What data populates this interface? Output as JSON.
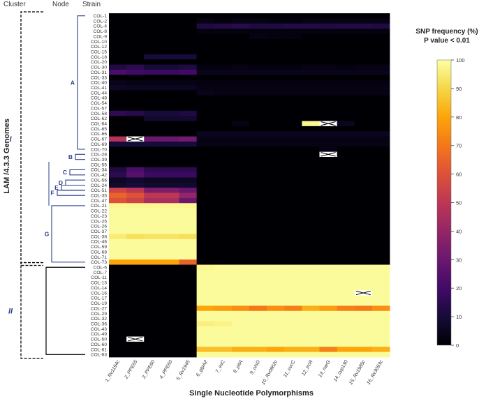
{
  "headers": {
    "cluster": "Cluster",
    "node": "Node",
    "strain": "Strain"
  },
  "legend": {
    "title_line1": "SNP frequency (%)",
    "title_line2": "P value < 0.01",
    "ticks": [
      0,
      10,
      20,
      30,
      40,
      50,
      60,
      70,
      80,
      90,
      100
    ]
  },
  "xlabel": "Single Nucleotide Polymorphisms",
  "ylabel": "LAM /4.3.3 Genomes",
  "clusters": [
    {
      "name": "I",
      "first": "COL-1",
      "last": "COL-73"
    },
    {
      "name": "II",
      "first": "COL-6",
      "last": "COL-63"
    }
  ],
  "nodes": [
    {
      "name": "A",
      "first": "COL-1",
      "last": "COL-70"
    },
    {
      "name": "B",
      "first": "COL-28",
      "last": "COL-39"
    },
    {
      "name": "C",
      "first": "COL-34",
      "last": "COL-42"
    },
    {
      "name": "D",
      "first": "COL-56",
      "last": "COL-24"
    },
    {
      "name": "E",
      "first": "COL-24",
      "last": "COL-51"
    },
    {
      "name": "F",
      "first": "COL-51",
      "last": "COL-35"
    },
    {
      "name": "G",
      "first": "COL-21",
      "last": "COL-73"
    }
  ],
  "chart_data": {
    "type": "heatmap",
    "xlabel": "Single Nucleotide Polymorphisms",
    "ylabel": "LAM /4.3.3 Genomes",
    "colorbar_label": "SNP frequency (%) P value < 0.01",
    "zlim": [
      0,
      100
    ],
    "columns": [
      "1_Rv1194c",
      "2_PPE65",
      "3_PPE60",
      "4_PPE60",
      "5_Rv1945",
      "6_glpA2",
      "7_iniC",
      "8_pitA",
      "9_otsD",
      "10_Rv0862c",
      "11_sucC",
      "12_trcR",
      "13_narG",
      "14_cyp130",
      "15_Rv1985c",
      "16_Rv3093c"
    ],
    "rows": [
      "COL-1",
      "COL-2",
      "COL-4",
      "COL-8",
      "COL-9",
      "COL-10",
      "COL-12",
      "COL-15",
      "COL-18",
      "COL-20",
      "COL-30",
      "COL-31",
      "COL-33",
      "COL-40",
      "COL-41",
      "COL-44",
      "COL-48",
      "COL-54",
      "COL-57",
      "COL-58",
      "COL-62",
      "COL-64",
      "COL-65",
      "COL-66",
      "COL-67",
      "COL-69",
      "COL-70",
      "COL-28",
      "COL-39",
      "COL-55",
      "COL-34",
      "COL-42",
      "COL-56",
      "COL-24",
      "COL-51",
      "COL-35",
      "COL-47",
      "COL-21",
      "COL-22",
      "COL-23",
      "COL-25",
      "COL-26",
      "COL-37",
      "COL-38",
      "COL-46",
      "COL-59",
      "COL-68",
      "COL-71",
      "COL-73",
      "COL-6",
      "COL-7",
      "COL-11",
      "COL-13",
      "COL-14",
      "COL-16",
      "COL-17",
      "COL-19",
      "COL-27",
      "COL-29",
      "COL-32",
      "COL-36",
      "COL-43",
      "COL-49",
      "COL-50",
      "COL-60",
      "COL-61",
      "COL-63"
    ],
    "values": [
      [
        0,
        0,
        0,
        0,
        0,
        0,
        0,
        0,
        0,
        0,
        0,
        0,
        0,
        0,
        0,
        0
      ],
      [
        0,
        0,
        0,
        0,
        0,
        3,
        2,
        3,
        3,
        2,
        2,
        3,
        3,
        3,
        3,
        3
      ],
      [
        0,
        0,
        0,
        0,
        0,
        12,
        13,
        14,
        12,
        12,
        13,
        13,
        12,
        13,
        13,
        12
      ],
      [
        0,
        0,
        0,
        0,
        0,
        2,
        2,
        2,
        2,
        2,
        2,
        2,
        2,
        2,
        2,
        2
      ],
      [
        0,
        0,
        0,
        0,
        0,
        0,
        0,
        0,
        3,
        2,
        2,
        0,
        0,
        0,
        0,
        0
      ],
      [
        0,
        0,
        0,
        0,
        0,
        0,
        0,
        0,
        0,
        0,
        0,
        0,
        0,
        0,
        0,
        0
      ],
      [
        0,
        0,
        0,
        0,
        0,
        0,
        0,
        0,
        0,
        0,
        0,
        0,
        0,
        0,
        0,
        0
      ],
      [
        0,
        0,
        0,
        0,
        0,
        0,
        0,
        0,
        0,
        0,
        0,
        0,
        0,
        0,
        0,
        0
      ],
      [
        0,
        0,
        10,
        10,
        10,
        0,
        0,
        0,
        0,
        0,
        0,
        0,
        0,
        0,
        0,
        0
      ],
      [
        0,
        0,
        0,
        0,
        0,
        0,
        0,
        0,
        0,
        0,
        0,
        0,
        0,
        0,
        0,
        0
      ],
      [
        12,
        15,
        10,
        10,
        12,
        2,
        2,
        3,
        2,
        2,
        2,
        3,
        3,
        2,
        3,
        3
      ],
      [
        22,
        20,
        18,
        18,
        20,
        4,
        4,
        4,
        4,
        4,
        4,
        4,
        4,
        4,
        4,
        4
      ],
      [
        0,
        0,
        0,
        0,
        0,
        0,
        0,
        0,
        0,
        0,
        0,
        0,
        0,
        0,
        0,
        0
      ],
      [
        4,
        3,
        3,
        3,
        3,
        2,
        2,
        2,
        2,
        2,
        2,
        2,
        2,
        2,
        2,
        2
      ],
      [
        6,
        5,
        5,
        5,
        5,
        3,
        3,
        3,
        3,
        3,
        3,
        3,
        3,
        3,
        3,
        3
      ],
      [
        0,
        0,
        0,
        0,
        0,
        4,
        3,
        3,
        3,
        3,
        3,
        3,
        3,
        3,
        3,
        3
      ],
      [
        0,
        0,
        0,
        0,
        0,
        0,
        0,
        0,
        0,
        0,
        0,
        0,
        0,
        0,
        0,
        0
      ],
      [
        0,
        0,
        0,
        0,
        0,
        0,
        0,
        0,
        0,
        0,
        0,
        0,
        0,
        0,
        0,
        0
      ],
      [
        0,
        0,
        0,
        0,
        0,
        0,
        0,
        0,
        0,
        0,
        0,
        0,
        0,
        0,
        0,
        0
      ],
      [
        16,
        14,
        10,
        10,
        12,
        0,
        0,
        0,
        0,
        0,
        0,
        0,
        0,
        0,
        0,
        0
      ],
      [
        0,
        0,
        8,
        8,
        8,
        0,
        0,
        0,
        0,
        0,
        0,
        0,
        0,
        0,
        0,
        0
      ],
      [
        0,
        0,
        0,
        0,
        0,
        0,
        0,
        3,
        0,
        0,
        0,
        98,
        null,
        5,
        0,
        0
      ],
      [
        0,
        0,
        0,
        0,
        0,
        0,
        0,
        0,
        0,
        0,
        0,
        0,
        0,
        0,
        0,
        0
      ],
      [
        0,
        0,
        0,
        0,
        0,
        5,
        5,
        5,
        5,
        5,
        5,
        5,
        5,
        5,
        5,
        5
      ],
      [
        48,
        null,
        30,
        30,
        32,
        3,
        3,
        3,
        3,
        3,
        3,
        3,
        3,
        3,
        3,
        3
      ],
      [
        10,
        10,
        10,
        10,
        10,
        3,
        3,
        3,
        3,
        3,
        3,
        3,
        3,
        3,
        3,
        3
      ],
      [
        0,
        0,
        0,
        0,
        0,
        0,
        0,
        0,
        0,
        0,
        0,
        0,
        3,
        0,
        0,
        0
      ],
      [
        0,
        0,
        0,
        0,
        0,
        0,
        0,
        0,
        0,
        0,
        0,
        0,
        null,
        0,
        0,
        0
      ],
      [
        0,
        0,
        0,
        0,
        0,
        0,
        0,
        0,
        0,
        0,
        0,
        0,
        0,
        0,
        0,
        0
      ],
      [
        0,
        0,
        0,
        0,
        0,
        0,
        0,
        0,
        0,
        0,
        0,
        0,
        0,
        0,
        0,
        0
      ],
      [
        12,
        22,
        15,
        15,
        15,
        0,
        0,
        0,
        0,
        0,
        0,
        0,
        0,
        0,
        0,
        0
      ],
      [
        15,
        25,
        18,
        18,
        18,
        0,
        0,
        0,
        0,
        0,
        0,
        0,
        0,
        0,
        0,
        0
      ],
      [
        6,
        8,
        6,
        6,
        6,
        0,
        0,
        0,
        0,
        0,
        0,
        0,
        0,
        0,
        0,
        0
      ],
      [
        8,
        10,
        8,
        8,
        8,
        0,
        0,
        0,
        0,
        0,
        0,
        0,
        0,
        0,
        0,
        0
      ],
      [
        55,
        50,
        35,
        35,
        30,
        0,
        0,
        0,
        0,
        0,
        0,
        0,
        0,
        0,
        0,
        0
      ],
      [
        65,
        60,
        50,
        50,
        40,
        0,
        0,
        0,
        0,
        0,
        0,
        0,
        0,
        0,
        0,
        0
      ],
      [
        60,
        55,
        45,
        45,
        30,
        0,
        0,
        0,
        0,
        0,
        0,
        0,
        0,
        0,
        0,
        0
      ],
      [
        98,
        98,
        98,
        98,
        98,
        0,
        0,
        0,
        0,
        0,
        0,
        0,
        0,
        0,
        0,
        0
      ],
      [
        99,
        99,
        99,
        99,
        99,
        0,
        0,
        0,
        0,
        0,
        0,
        0,
        0,
        0,
        0,
        0
      ],
      [
        99,
        99,
        99,
        99,
        99,
        0,
        0,
        0,
        0,
        0,
        0,
        0,
        0,
        0,
        0,
        0
      ],
      [
        99,
        99,
        99,
        99,
        99,
        0,
        0,
        0,
        0,
        0,
        0,
        0,
        0,
        0,
        0,
        0
      ],
      [
        99,
        99,
        99,
        99,
        99,
        0,
        0,
        0,
        0,
        0,
        0,
        0,
        0,
        0,
        0,
        0
      ],
      [
        99,
        99,
        99,
        99,
        99,
        0,
        0,
        0,
        0,
        0,
        0,
        0,
        0,
        0,
        0,
        0
      ],
      [
        95,
        92,
        93,
        93,
        92,
        0,
        0,
        0,
        0,
        0,
        0,
        0,
        0,
        0,
        0,
        0
      ],
      [
        99,
        99,
        99,
        99,
        99,
        0,
        0,
        0,
        0,
        0,
        0,
        0,
        0,
        0,
        0,
        0
      ],
      [
        99,
        99,
        99,
        99,
        99,
        0,
        0,
        0,
        0,
        0,
        0,
        0,
        0,
        0,
        0,
        0
      ],
      [
        99,
        99,
        99,
        99,
        99,
        0,
        0,
        0,
        0,
        0,
        0,
        0,
        0,
        0,
        0,
        0
      ],
      [
        99,
        99,
        99,
        99,
        99,
        0,
        0,
        0,
        0,
        0,
        0,
        0,
        0,
        0,
        0,
        0
      ],
      [
        80,
        80,
        80,
        80,
        65,
        0,
        0,
        0,
        0,
        0,
        0,
        0,
        0,
        0,
        0,
        0
      ],
      [
        0,
        0,
        0,
        0,
        0,
        98,
        99,
        99,
        99,
        99,
        99,
        99,
        99,
        99,
        99,
        99
      ],
      [
        0,
        0,
        0,
        0,
        0,
        99,
        99,
        99,
        99,
        99,
        99,
        99,
        99,
        99,
        99,
        99
      ],
      [
        0,
        0,
        0,
        0,
        0,
        99,
        99,
        99,
        99,
        99,
        99,
        99,
        99,
        99,
        99,
        99
      ],
      [
        0,
        0,
        0,
        0,
        0,
        99,
        99,
        99,
        99,
        99,
        99,
        99,
        99,
        99,
        99,
        99
      ],
      [
        0,
        0,
        0,
        0,
        0,
        99,
        99,
        99,
        99,
        99,
        99,
        99,
        99,
        99,
        99,
        99
      ],
      [
        0,
        0,
        0,
        0,
        0,
        99,
        99,
        99,
        99,
        99,
        99,
        99,
        99,
        99,
        null,
        99
      ],
      [
        0,
        0,
        0,
        0,
        0,
        99,
        99,
        99,
        99,
        99,
        99,
        99,
        99,
        99,
        99,
        99
      ],
      [
        0,
        0,
        0,
        0,
        0,
        99,
        99,
        99,
        99,
        99,
        99,
        99,
        99,
        99,
        99,
        99
      ],
      [
        0,
        0,
        0,
        0,
        0,
        80,
        78,
        75,
        70,
        75,
        72,
        82,
        78,
        72,
        70,
        75
      ],
      [
        0,
        0,
        0,
        0,
        0,
        99,
        99,
        99,
        99,
        99,
        99,
        99,
        99,
        99,
        99,
        99
      ],
      [
        0,
        0,
        0,
        0,
        0,
        99,
        99,
        99,
        99,
        99,
        99,
        99,
        99,
        99,
        99,
        99
      ],
      [
        0,
        0,
        0,
        0,
        0,
        96,
        97,
        99,
        99,
        99,
        99,
        99,
        99,
        99,
        99,
        99
      ],
      [
        0,
        0,
        0,
        0,
        0,
        99,
        99,
        99,
        99,
        99,
        99,
        99,
        99,
        99,
        99,
        99
      ],
      [
        0,
        0,
        0,
        0,
        0,
        99,
        99,
        99,
        99,
        99,
        99,
        99,
        99,
        99,
        99,
        99
      ],
      [
        0,
        null,
        0,
        0,
        0,
        99,
        99,
        99,
        99,
        99,
        99,
        99,
        99,
        99,
        99,
        99
      ],
      [
        0,
        0,
        0,
        0,
        0,
        99,
        99,
        99,
        99,
        99,
        99,
        99,
        99,
        99,
        99,
        99
      ],
      [
        0,
        0,
        0,
        0,
        0,
        85,
        85,
        82,
        82,
        80,
        82,
        82,
        72,
        80,
        80,
        82
      ],
      [
        0,
        0,
        0,
        0,
        0,
        99,
        99,
        99,
        99,
        99,
        99,
        99,
        99,
        99,
        99,
        99
      ]
    ]
  }
}
